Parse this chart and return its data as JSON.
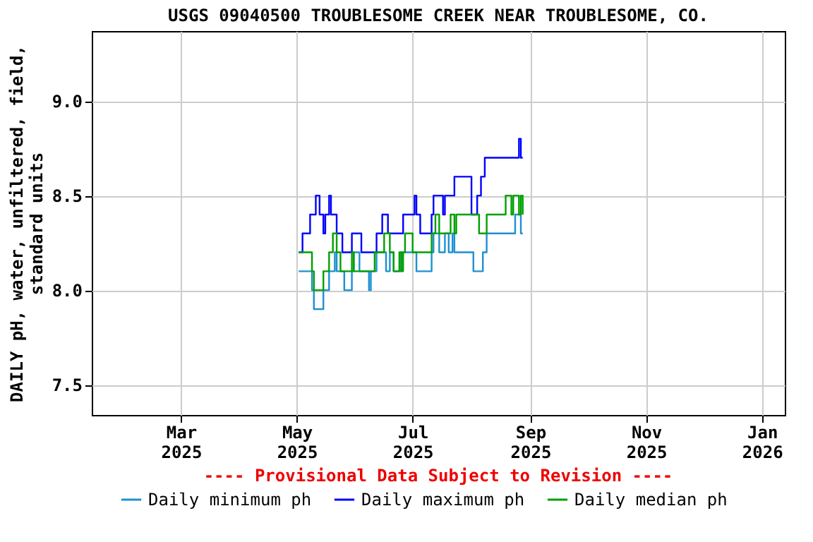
{
  "chart_data": {
    "type": "step",
    "title": "USGS 09040500 TROUBLESOME CREEK NEAR TROUBLESOME, CO.",
    "ylabel": "DAILY pH, water, unfiltered, field,\nstandard units",
    "xlim": [
      "2025-01-13",
      "2026-01-13"
    ],
    "xticks": [
      {
        "value": "2025-03-01",
        "label": "Mar\n2025"
      },
      {
        "value": "2025-05-01",
        "label": "May\n2025"
      },
      {
        "value": "2025-07-01",
        "label": "Jul\n2025"
      },
      {
        "value": "2025-09-01",
        "label": "Sep\n2025"
      },
      {
        "value": "2025-11-01",
        "label": "Nov\n2025"
      },
      {
        "value": "2026-01-01",
        "label": "Jan\n2026"
      }
    ],
    "ylim": [
      7.34,
      9.37
    ],
    "yticks": [
      {
        "value": 7.5,
        "label": "7.5"
      },
      {
        "value": 8.0,
        "label": "8.0"
      },
      {
        "value": 8.5,
        "label": "8.5"
      },
      {
        "value": 9.0,
        "label": "9.0"
      }
    ],
    "grid": true,
    "legend": "bottom",
    "line_style": "solid",
    "annotations": [
      "---- Provisional Data Subject to Revision ----"
    ],
    "series": [
      {
        "name": "Daily minimum ph",
        "color": "#1e90d0",
        "x": [
          "2025-05-02",
          "2025-05-09",
          "2025-05-10",
          "2025-05-15",
          "2025-05-18",
          "2025-05-21",
          "2025-05-22",
          "2025-05-26",
          "2025-05-30",
          "2025-05-31",
          "2025-06-03",
          "2025-06-08",
          "2025-06-09",
          "2025-06-12",
          "2025-06-17",
          "2025-06-19",
          "2025-06-21",
          "2025-06-25",
          "2025-07-03",
          "2025-07-11",
          "2025-07-12",
          "2025-07-15",
          "2025-07-18",
          "2025-07-20",
          "2025-07-22",
          "2025-07-23",
          "2025-08-02",
          "2025-08-07",
          "2025-08-09",
          "2025-08-24",
          "2025-08-27",
          "2025-08-28"
        ],
        "values": [
          8.1,
          8.0,
          7.9,
          8.0,
          8.1,
          8.2,
          8.1,
          8.0,
          8.1,
          8.2,
          8.1,
          8.0,
          8.1,
          8.2,
          8.1,
          8.2,
          8.1,
          8.2,
          8.1,
          8.2,
          8.3,
          8.2,
          8.3,
          8.2,
          8.3,
          8.2,
          8.1,
          8.2,
          8.3,
          8.4,
          8.3,
          8.3
        ]
      },
      {
        "name": "Daily maximum ph",
        "color": "#0000ff",
        "x": [
          "2025-05-02",
          "2025-05-04",
          "2025-05-08",
          "2025-05-11",
          "2025-05-13",
          "2025-05-15",
          "2025-05-16",
          "2025-05-18",
          "2025-05-19",
          "2025-05-22",
          "2025-05-25",
          "2025-05-30",
          "2025-06-04",
          "2025-06-12",
          "2025-06-15",
          "2025-06-18",
          "2025-06-26",
          "2025-07-02",
          "2025-07-03",
          "2025-07-05",
          "2025-07-11",
          "2025-07-12",
          "2025-07-17",
          "2025-07-18",
          "2025-07-23",
          "2025-08-01",
          "2025-08-04",
          "2025-08-06",
          "2025-08-08",
          "2025-08-26",
          "2025-08-27",
          "2025-08-28"
        ],
        "values": [
          8.2,
          8.3,
          8.4,
          8.5,
          8.4,
          8.3,
          8.4,
          8.5,
          8.4,
          8.3,
          8.2,
          8.3,
          8.2,
          8.3,
          8.4,
          8.3,
          8.4,
          8.5,
          8.4,
          8.3,
          8.4,
          8.5,
          8.4,
          8.5,
          8.6,
          8.4,
          8.5,
          8.6,
          8.7,
          8.8,
          8.7,
          8.7
        ]
      },
      {
        "name": "Daily median ph",
        "color": "#00a000",
        "x": [
          "2025-05-02",
          "2025-05-09",
          "2025-05-10",
          "2025-05-15",
          "2025-05-18",
          "2025-05-20",
          "2025-05-22",
          "2025-05-24",
          "2025-05-30",
          "2025-05-31",
          "2025-06-11",
          "2025-06-16",
          "2025-06-19",
          "2025-06-21",
          "2025-06-24",
          "2025-06-25",
          "2025-06-26",
          "2025-06-27",
          "2025-07-01",
          "2025-07-11",
          "2025-07-13",
          "2025-07-15",
          "2025-07-21",
          "2025-07-23",
          "2025-07-24",
          "2025-08-05",
          "2025-08-09",
          "2025-08-19",
          "2025-08-22",
          "2025-08-23",
          "2025-08-26",
          "2025-08-27",
          "2025-08-28"
        ],
        "values": [
          8.2,
          8.1,
          8.0,
          8.1,
          8.2,
          8.3,
          8.2,
          8.1,
          8.2,
          8.1,
          8.2,
          8.3,
          8.2,
          8.1,
          8.2,
          8.1,
          8.2,
          8.3,
          8.2,
          8.3,
          8.4,
          8.3,
          8.4,
          8.3,
          8.4,
          8.3,
          8.4,
          8.5,
          8.4,
          8.5,
          8.4,
          8.5,
          8.4
        ]
      }
    ]
  }
}
